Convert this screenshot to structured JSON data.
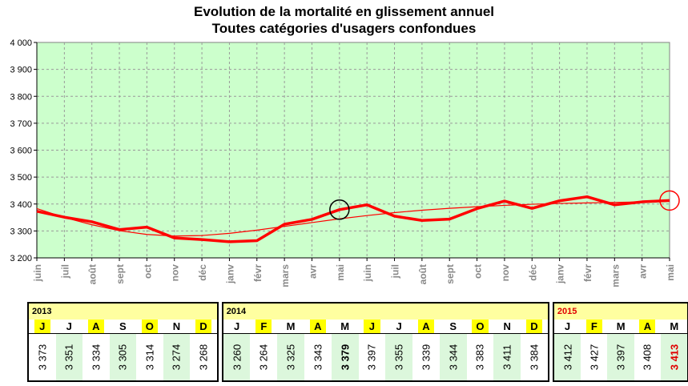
{
  "chart_data": {
    "type": "line",
    "title": "Evolution de la mortalité en glissement annuel",
    "subtitle": "Toutes catégories d'usagers confondues",
    "x": [
      "juin",
      "juil",
      "août",
      "sept",
      "oct",
      "nov",
      "déc",
      "janv",
      "févr",
      "mars",
      "avr",
      "mai",
      "juin",
      "juil",
      "août",
      "sept",
      "oct",
      "nov",
      "déc",
      "janv",
      "févr",
      "mars",
      "avr",
      "mai"
    ],
    "ylim": [
      3200,
      4000
    ],
    "yticks": [
      "3 200",
      "3 300",
      "3 400",
      "3 500",
      "3 600",
      "3 700",
      "3 800",
      "3 900",
      "4 000"
    ],
    "grid": true,
    "series": [
      {
        "values": [
          3373,
          3351,
          3334,
          3305,
          3314,
          3274,
          3268,
          3260,
          3264,
          3325,
          3343,
          3379,
          3397,
          3355,
          3339,
          3344,
          3383,
          3411,
          3384,
          3412,
          3427,
          3397,
          3408,
          3413
        ],
        "color": "#ff0000"
      },
      {
        "type": "trend",
        "values": [
          3383,
          3350,
          3323,
          3301,
          3287,
          3281,
          3283,
          3291,
          3303,
          3317,
          3331,
          3345,
          3357,
          3368,
          3377,
          3384,
          3390,
          3395,
          3399,
          3402,
          3404,
          3406,
          3408,
          3410
        ],
        "color": "#ff0000"
      }
    ],
    "annotations": [
      {
        "type": "circle",
        "index": 11,
        "color": "#000000"
      },
      {
        "type": "circle",
        "index": 23,
        "color": "#ff0000"
      }
    ]
  },
  "table": {
    "segments": [
      {
        "year": "2013",
        "year_color": "#000000",
        "months": [
          {
            "m": "J",
            "v": "3 373",
            "hl": true,
            "grn": false,
            "style": ""
          },
          {
            "m": "J",
            "v": "3 351",
            "hl": false,
            "grn": true,
            "style": ""
          },
          {
            "m": "A",
            "v": "3 334",
            "hl": true,
            "grn": false,
            "style": ""
          },
          {
            "m": "S",
            "v": "3 305",
            "hl": false,
            "grn": true,
            "style": ""
          },
          {
            "m": "O",
            "v": "3 314",
            "hl": true,
            "grn": false,
            "style": ""
          },
          {
            "m": "N",
            "v": "3 274",
            "hl": false,
            "grn": true,
            "style": ""
          },
          {
            "m": "D",
            "v": "3 268",
            "hl": true,
            "grn": false,
            "style": ""
          }
        ]
      },
      {
        "year": "2014",
        "year_color": "#000000",
        "months": [
          {
            "m": "J",
            "v": "3 260",
            "hl": false,
            "grn": true,
            "style": ""
          },
          {
            "m": "F",
            "v": "3 264",
            "hl": true,
            "grn": false,
            "style": ""
          },
          {
            "m": "M",
            "v": "3 325",
            "hl": false,
            "grn": true,
            "style": ""
          },
          {
            "m": "A",
            "v": "3 343",
            "hl": true,
            "grn": false,
            "style": ""
          },
          {
            "m": "M",
            "v": "3 379",
            "hl": false,
            "grn": true,
            "style": "bold"
          },
          {
            "m": "J",
            "v": "3 397",
            "hl": true,
            "grn": false,
            "style": ""
          },
          {
            "m": "J",
            "v": "3 355",
            "hl": false,
            "grn": true,
            "style": ""
          },
          {
            "m": "A",
            "v": "3 339",
            "hl": true,
            "grn": false,
            "style": ""
          },
          {
            "m": "S",
            "v": "3 344",
            "hl": false,
            "grn": true,
            "style": ""
          },
          {
            "m": "O",
            "v": "3 383",
            "hl": true,
            "grn": false,
            "style": ""
          },
          {
            "m": "N",
            "v": "3 411",
            "hl": false,
            "grn": true,
            "style": ""
          },
          {
            "m": "D",
            "v": "3 384",
            "hl": true,
            "grn": false,
            "style": ""
          }
        ]
      },
      {
        "year": "2015",
        "year_color": "#e00000",
        "months": [
          {
            "m": "J",
            "v": "3 412",
            "hl": false,
            "grn": true,
            "style": ""
          },
          {
            "m": "F",
            "v": "3 427",
            "hl": true,
            "grn": false,
            "style": ""
          },
          {
            "m": "M",
            "v": "3 397",
            "hl": false,
            "grn": true,
            "style": ""
          },
          {
            "m": "A",
            "v": "3 408",
            "hl": true,
            "grn": false,
            "style": ""
          },
          {
            "m": "M",
            "v": "3 413",
            "hl": false,
            "grn": true,
            "style": "red"
          }
        ]
      }
    ]
  }
}
